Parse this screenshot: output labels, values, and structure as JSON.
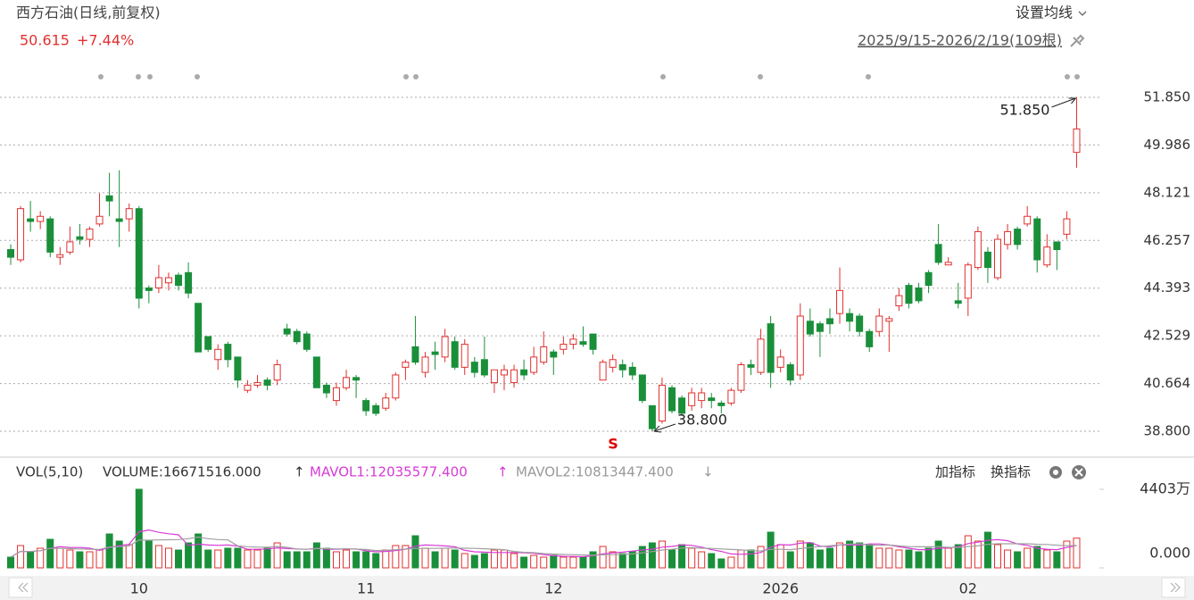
{
  "header": {
    "title": "西方石油(日线,前复权)",
    "price": "50.615",
    "change": "+7.44%",
    "ma_button": "设置均线",
    "range": "2025/9/15-2026/2/19(109根)"
  },
  "volume_header": {
    "name": "VOL(5,10)",
    "volume": "VOLUME:16671516.000",
    "mavol1": "MAVOL1:12035577.400",
    "mavol2": "MAVOL2:10813447.400",
    "add": "加指标",
    "switch": "换指标"
  },
  "chart_data": [
    {
      "type": "candlestick",
      "up_color": "#e0312f",
      "down_color": "#1a8f3a",
      "categories": [
        null,
        null,
        null,
        null,
        null,
        null,
        null,
        null,
        null,
        null,
        null,
        null,
        null,
        "10",
        null,
        null,
        null,
        null,
        null,
        null,
        null,
        null,
        null,
        null,
        null,
        null,
        null,
        null,
        null,
        null,
        null,
        null,
        null,
        null,
        null,
        null,
        "11",
        null,
        null,
        null,
        null,
        null,
        null,
        null,
        null,
        null,
        null,
        null,
        null,
        null,
        null,
        null,
        null,
        null,
        null,
        "12",
        null,
        null,
        null,
        null,
        null,
        null,
        null,
        null,
        null,
        null,
        null,
        null,
        null,
        null,
        null,
        null,
        null,
        null,
        null,
        null,
        null,
        null,
        "2026",
        null,
        null,
        null,
        null,
        null,
        null,
        null,
        null,
        null,
        null,
        null,
        null,
        null,
        null,
        null,
        null,
        null,
        null,
        "02",
        null,
        null,
        null,
        null,
        null,
        null,
        null,
        null,
        null,
        null,
        null
      ],
      "open": [
        45.9,
        45.5,
        47.1,
        47.0,
        47.1,
        45.6,
        45.8,
        46.4,
        46.3,
        46.9,
        48.0,
        47.1,
        47.1,
        47.5,
        44.4,
        44.4,
        44.6,
        44.9,
        45.0,
        43.8,
        42.5,
        41.6,
        42.2,
        41.7,
        40.4,
        40.6,
        40.8,
        40.8,
        42.8,
        42.7,
        42.6,
        41.7,
        40.6,
        40.0,
        40.5,
        40.9,
        40.0,
        39.8,
        39.7,
        40.1,
        41.3,
        42.1,
        41.1,
        41.9,
        41.7,
        42.3,
        41.3,
        41.5,
        41.6,
        40.7,
        41.0,
        40.7,
        41.2,
        41.1,
        41.5,
        41.9,
        42.0,
        42.2,
        42.3,
        42.6,
        40.8,
        41.3,
        41.4,
        41.3,
        41.0,
        39.8,
        39.2,
        40.5,
        40.1,
        39.8,
        40.0,
        40.1,
        39.9,
        39.9,
        40.4,
        41.4,
        41.1,
        43.0,
        41.3,
        41.4,
        41.0,
        43.1,
        43.0,
        43.2,
        43.4,
        43.4,
        43.3,
        42.7,
        42.7,
        43.1,
        43.7,
        44.5,
        44.4,
        45.0,
        46.1,
        45.3,
        43.9,
        44.0,
        45.2,
        45.8,
        44.8,
        46.1,
        46.7,
        46.9,
        47.1,
        45.3,
        46.2,
        46.5,
        49.7
      ],
      "high": [
        46.1,
        47.6,
        47.8,
        47.4,
        47.2,
        46.0,
        46.8,
        46.9,
        46.8,
        48.1,
        48.9,
        49.0,
        47.7,
        47.6,
        44.5,
        45.3,
        45.0,
        45.0,
        45.4,
        43.8,
        42.5,
        42.2,
        42.3,
        41.7,
        40.8,
        41.0,
        40.9,
        41.6,
        43.0,
        42.8,
        42.7,
        41.7,
        40.7,
        40.7,
        41.2,
        41.0,
        40.1,
        39.9,
        40.3,
        41.1,
        41.6,
        43.3,
        41.9,
        42.3,
        42.8,
        42.5,
        42.4,
        41.7,
        42.5,
        41.2,
        41.4,
        41.4,
        41.6,
        42.1,
        42.7,
        42.0,
        42.5,
        42.6,
        42.9,
        42.6,
        41.6,
        41.8,
        41.6,
        41.5,
        41.0,
        39.8,
        40.9,
        40.6,
        40.2,
        40.5,
        40.5,
        40.3,
        40.0,
        40.5,
        41.5,
        41.6,
        42.8,
        43.3,
        42.0,
        41.5,
        43.8,
        43.6,
        43.1,
        43.6,
        45.2,
        43.6,
        43.4,
        42.8,
        43.6,
        43.3,
        44.4,
        44.6,
        44.6,
        45.1,
        46.9,
        45.6,
        44.6,
        45.4,
        46.8,
        46.0,
        46.5,
        46.9,
        46.8,
        47.6,
        47.2,
        46.5,
        46.2,
        47.4,
        51.85
      ],
      "low": [
        45.3,
        45.4,
        46.6,
        46.7,
        45.6,
        45.3,
        45.7,
        46.1,
        46.0,
        46.8,
        47.2,
        46.0,
        46.6,
        43.6,
        43.8,
        44.2,
        44.3,
        44.3,
        44.0,
        41.9,
        41.9,
        41.2,
        41.3,
        40.5,
        40.3,
        40.5,
        40.4,
        40.6,
        42.5,
        42.2,
        41.9,
        40.5,
        40.1,
        39.8,
        40.4,
        40.1,
        39.4,
        39.4,
        39.6,
        40.0,
        40.8,
        41.4,
        40.9,
        41.2,
        41.5,
        41.2,
        41.0,
        40.9,
        40.9,
        40.3,
        40.4,
        40.5,
        40.8,
        41.0,
        41.4,
        41.0,
        41.8,
        42.0,
        42.1,
        41.8,
        40.8,
        41.1,
        40.9,
        40.8,
        39.9,
        38.8,
        39.1,
        39.5,
        39.4,
        39.6,
        39.7,
        39.7,
        39.5,
        39.8,
        40.3,
        41.0,
        41.0,
        40.5,
        41.1,
        40.6,
        40.8,
        42.5,
        41.7,
        42.6,
        43.0,
        42.7,
        42.5,
        41.9,
        42.5,
        41.9,
        43.5,
        43.6,
        43.8,
        44.2,
        45.3,
        45.3,
        43.6,
        43.3,
        45.1,
        44.6,
        44.7,
        45.9,
        45.9,
        46.8,
        45.0,
        45.2,
        45.1,
        46.3,
        49.1
      ],
      "close": [
        45.6,
        47.5,
        47.0,
        47.2,
        45.8,
        45.7,
        46.2,
        46.3,
        46.7,
        47.2,
        47.8,
        47.0,
        47.5,
        44.0,
        44.3,
        44.8,
        44.8,
        44.5,
        44.2,
        41.9,
        42.0,
        42.0,
        41.6,
        40.8,
        40.6,
        40.7,
        40.6,
        41.4,
        42.6,
        42.3,
        42.0,
        40.5,
        40.3,
        40.5,
        40.9,
        40.8,
        39.6,
        39.5,
        40.1,
        41.0,
        41.5,
        41.5,
        41.7,
        41.8,
        42.5,
        41.3,
        42.2,
        41.1,
        41.0,
        41.2,
        41.2,
        41.2,
        41.0,
        41.7,
        42.1,
        41.7,
        42.2,
        42.4,
        42.2,
        42.0,
        41.5,
        41.6,
        41.2,
        41.0,
        40.0,
        38.9,
        40.6,
        39.6,
        39.5,
        40.3,
        40.3,
        40.0,
        39.8,
        40.4,
        41.4,
        41.3,
        42.4,
        41.1,
        41.7,
        40.8,
        43.3,
        42.6,
        42.7,
        43.0,
        44.3,
        43.1,
        42.7,
        42.1,
        43.3,
        43.2,
        44.1,
        43.8,
        43.9,
        44.5,
        45.4,
        45.4,
        43.8,
        45.3,
        46.6,
        45.2,
        46.3,
        46.6,
        46.1,
        47.2,
        45.5,
        46.0,
        45.9,
        47.1,
        50.615
      ],
      "ylim": [
        38.8,
        51.85
      ],
      "yticks": [
        {
          "value": 38.8,
          "label": "38.800"
        },
        {
          "value": 40.664,
          "label": "40.664"
        },
        {
          "value": 42.529,
          "label": "42.529"
        },
        {
          "value": 44.393,
          "label": "44.393"
        },
        {
          "value": 46.257,
          "label": "46.257"
        },
        {
          "value": 48.121,
          "label": "48.121"
        },
        {
          "value": 49.986,
          "label": "49.986"
        },
        {
          "value": 51.85,
          "label": "51.850"
        }
      ],
      "grid": true,
      "annotations": [
        {
          "text": "51.850"
        },
        {
          "text": "38.800"
        },
        {
          "text": "S"
        }
      ]
    },
    {
      "type": "volume",
      "ma_colors": [
        "#d63ad6",
        "#a0a0a0"
      ],
      "values": [
        6000000,
        12500000,
        9000000,
        11000000,
        16000000,
        11000000,
        10000000,
        9000000,
        9000000,
        10000000,
        19000000,
        15000000,
        13000000,
        44030000,
        15000000,
        12500000,
        11000000,
        10000000,
        14000000,
        19000000,
        10000000,
        10000000,
        11000000,
        11000000,
        10000000,
        10000000,
        11000000,
        14000000,
        9000000,
        9000000,
        9000000,
        14000000,
        11000000,
        9000000,
        10000000,
        9000000,
        9000000,
        8000000,
        10000000,
        12500000,
        12500000,
        18000000,
        11000000,
        9000000,
        11000000,
        10000000,
        8000000,
        7000000,
        8000000,
        10000000,
        10000000,
        8000000,
        6000000,
        7000000,
        6000000,
        7000000,
        6000000,
        6000000,
        6000000,
        9000000,
        12000000,
        9000000,
        8000000,
        9000000,
        12000000,
        14000000,
        15000000,
        10000000,
        13000000,
        11000000,
        9000000,
        8000000,
        5000000,
        6000000,
        10000000,
        10000000,
        12000000,
        20000000,
        13000000,
        9000000,
        15000000,
        14000000,
        10000000,
        11000000,
        14000000,
        15000000,
        14000000,
        13000000,
        11000000,
        11000000,
        10000000,
        10000000,
        9000000,
        11000000,
        15000000,
        11000000,
        13000000,
        18000000,
        15000000,
        20000000,
        13000000,
        10000000,
        9000000,
        11000000,
        12000000,
        10000000,
        9000000,
        15000000,
        16671516
      ],
      "ylim": [
        0,
        44030000
      ],
      "yticks": [
        {
          "value": 0,
          "label": "0.000"
        },
        {
          "value": 44030000,
          "label": "4403万"
        }
      ]
    }
  ]
}
